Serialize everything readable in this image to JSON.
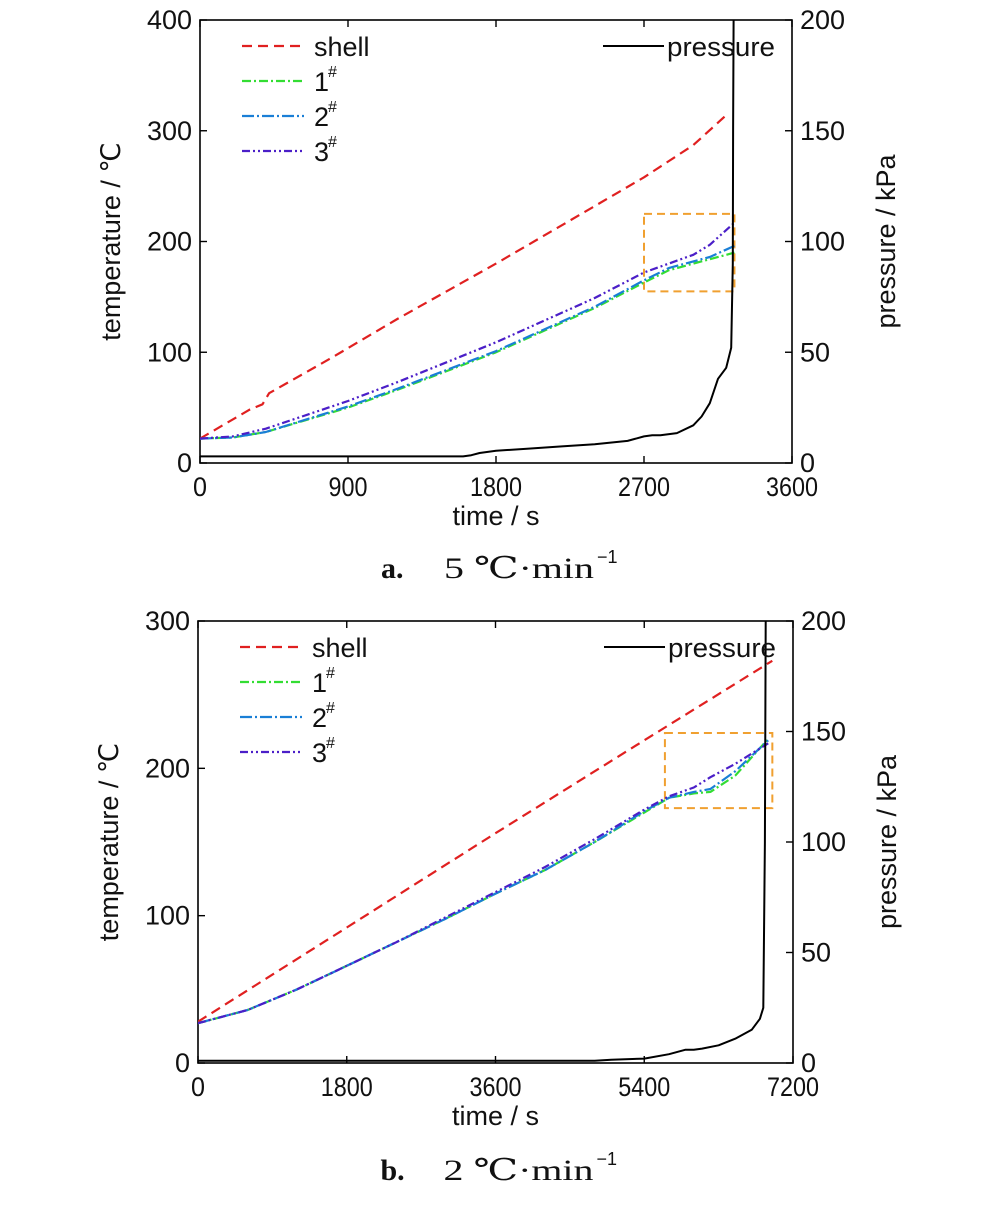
{
  "colors": {
    "shell": "#e02020",
    "t1": "#33dd33",
    "t2": "#1a7fd6",
    "t3": "#4b1fc8",
    "pressure": "#000000",
    "highlight_box": "#f0a030"
  },
  "chart_data": [
    {
      "type": "line",
      "caption_label": "a.",
      "caption_text": "5 ℃·min",
      "caption_sup": "−1",
      "xlabel": "time / s",
      "ylabel_left": "temperature / ℃",
      "ylabel_right": "pressure / kPa",
      "xlim": [
        0,
        3600
      ],
      "ylim_left": [
        0,
        400
      ],
      "ylim_right": [
        0,
        200
      ],
      "x_ticks": [
        "0",
        "900",
        "1800",
        "2700",
        "3600"
      ],
      "y_left_ticks": [
        "0",
        "100",
        "200",
        "300",
        "400"
      ],
      "y_right_ticks": [
        "0",
        "50",
        "100",
        "150",
        "200"
      ],
      "grid": false,
      "legend_left": [
        {
          "key": "shell",
          "label": "shell",
          "sup": ""
        },
        {
          "key": "t1",
          "label": "1",
          "sup": "#"
        },
        {
          "key": "t2",
          "label": "2",
          "sup": "#"
        },
        {
          "key": "t3",
          "label": "3",
          "sup": "#"
        }
      ],
      "legend_right": [
        {
          "key": "pressure",
          "label": "pressure",
          "sup": ""
        }
      ],
      "highlight_box": {
        "x": [
          2700,
          3250
        ],
        "y_left": [
          155,
          225
        ]
      },
      "series": [
        {
          "key": "shell",
          "axis": "left",
          "dash": "10,6",
          "x": [
            0,
            300,
            380,
            420,
            800,
            1200,
            1800,
            2400,
            2700,
            3000,
            3200
          ],
          "y": [
            22,
            48,
            53,
            63,
            95,
            130,
            180,
            232,
            258,
            287,
            314
          ]
        },
        {
          "key": "t1",
          "axis": "left",
          "dash": "9,3,2,3",
          "x": [
            0,
            200,
            400,
            900,
            1200,
            1800,
            2400,
            2700,
            2850,
            3000,
            3100,
            3250
          ],
          "y": [
            22,
            23,
            28,
            50,
            66,
            100,
            140,
            163,
            174,
            180,
            184,
            190
          ]
        },
        {
          "key": "t2",
          "axis": "left",
          "dash": "12,3,2,3",
          "x": [
            0,
            200,
            400,
            900,
            1200,
            1800,
            2400,
            2700,
            2850,
            3000,
            3100,
            3250
          ],
          "y": [
            22,
            23,
            28,
            51,
            67,
            101,
            141,
            165,
            176,
            182,
            186,
            196
          ]
        },
        {
          "key": "t3",
          "axis": "left",
          "dash": "8,3,2,3,2,3",
          "x": [
            0,
            200,
            400,
            900,
            1200,
            1800,
            2400,
            2700,
            2850,
            3000,
            3100,
            3250
          ],
          "y": [
            22,
            24,
            31,
            56,
            73,
            109,
            149,
            172,
            180,
            188,
            197,
            217
          ]
        },
        {
          "key": "pressure",
          "axis": "right",
          "dash": "",
          "x": [
            0,
            600,
            1200,
            1600,
            1650,
            1700,
            1800,
            2000,
            2200,
            2400,
            2600,
            2700,
            2750,
            2800,
            2900,
            3000,
            3050,
            3100,
            3150,
            3200,
            3230,
            3240,
            3242,
            3245
          ],
          "y": [
            3,
            3,
            3,
            3,
            3.5,
            4.5,
            5.5,
            6.5,
            7.5,
            8.5,
            10,
            12,
            12.5,
            12.5,
            13.5,
            17,
            21,
            27,
            38,
            43,
            52,
            90,
            150,
            200
          ]
        }
      ]
    },
    {
      "type": "line",
      "caption_label": "b.",
      "caption_text": "2 ℃·min",
      "caption_sup": "−1",
      "xlabel": "time / s",
      "ylabel_left": "temperature / ℃",
      "ylabel_right": "pressure / kPa",
      "xlim": [
        0,
        7200
      ],
      "ylim_left": [
        0,
        300
      ],
      "ylim_right": [
        0,
        200
      ],
      "x_ticks": [
        "0",
        "1800",
        "3600",
        "5400",
        "7200"
      ],
      "y_left_ticks": [
        "0",
        "100",
        "200",
        "300"
      ],
      "y_right_ticks": [
        "0",
        "50",
        "100",
        "150",
        "200"
      ],
      "grid": false,
      "legend_left": [
        {
          "key": "shell",
          "label": "shell",
          "sup": ""
        },
        {
          "key": "t1",
          "label": "1",
          "sup": "#"
        },
        {
          "key": "t2",
          "label": "2",
          "sup": "#"
        },
        {
          "key": "t3",
          "label": "3",
          "sup": "#"
        }
      ],
      "legend_right": [
        {
          "key": "pressure",
          "label": "pressure",
          "sup": ""
        }
      ],
      "highlight_box": {
        "x": [
          5650,
          6950
        ],
        "y_left": [
          173,
          224
        ]
      },
      "series": [
        {
          "key": "shell",
          "axis": "left",
          "dash": "10,6",
          "x": [
            0,
            1800,
            3600,
            5400,
            6950
          ],
          "y": [
            28,
            92,
            156,
            219,
            273
          ]
        },
        {
          "key": "t1",
          "axis": "left",
          "dash": "9,3,2,3",
          "x": [
            0,
            600,
            1200,
            1800,
            2400,
            3000,
            3600,
            4200,
            4800,
            5400,
            5700,
            6000,
            6200,
            6500,
            6900
          ],
          "y": [
            27,
            36,
            50,
            66,
            82,
            98,
            115,
            131,
            150,
            170,
            180,
            183,
            184,
            195,
            220
          ]
        },
        {
          "key": "t2",
          "axis": "left",
          "dash": "12,3,2,3",
          "x": [
            0,
            600,
            1200,
            1800,
            2400,
            3000,
            3600,
            4200,
            4800,
            5400,
            5700,
            6000,
            6200,
            6500,
            6900
          ],
          "y": [
            27,
            36,
            50,
            66,
            82,
            98,
            115,
            131,
            150,
            171,
            180,
            184,
            186,
            198,
            219
          ]
        },
        {
          "key": "t3",
          "axis": "left",
          "dash": "8,3,2,3,2,3",
          "x": [
            0,
            600,
            1200,
            1800,
            2400,
            3000,
            3600,
            4200,
            4800,
            5400,
            5700,
            6000,
            6200,
            6500,
            6900
          ],
          "y": [
            27,
            36,
            50,
            66,
            82,
            99,
            116,
            133,
            152,
            172,
            181,
            187,
            194,
            203,
            217
          ]
        },
        {
          "key": "pressure",
          "axis": "right",
          "dash": "",
          "x": [
            0,
            2000,
            3600,
            4800,
            5000,
            5400,
            5700,
            5900,
            6000,
            6100,
            6300,
            6500,
            6700,
            6800,
            6840,
            6860,
            6870
          ],
          "y": [
            1,
            1,
            1,
            1,
            1.5,
            2,
            4,
            6,
            6,
            6.5,
            8,
            11,
            15,
            20,
            25,
            100,
            200
          ]
        }
      ]
    }
  ]
}
